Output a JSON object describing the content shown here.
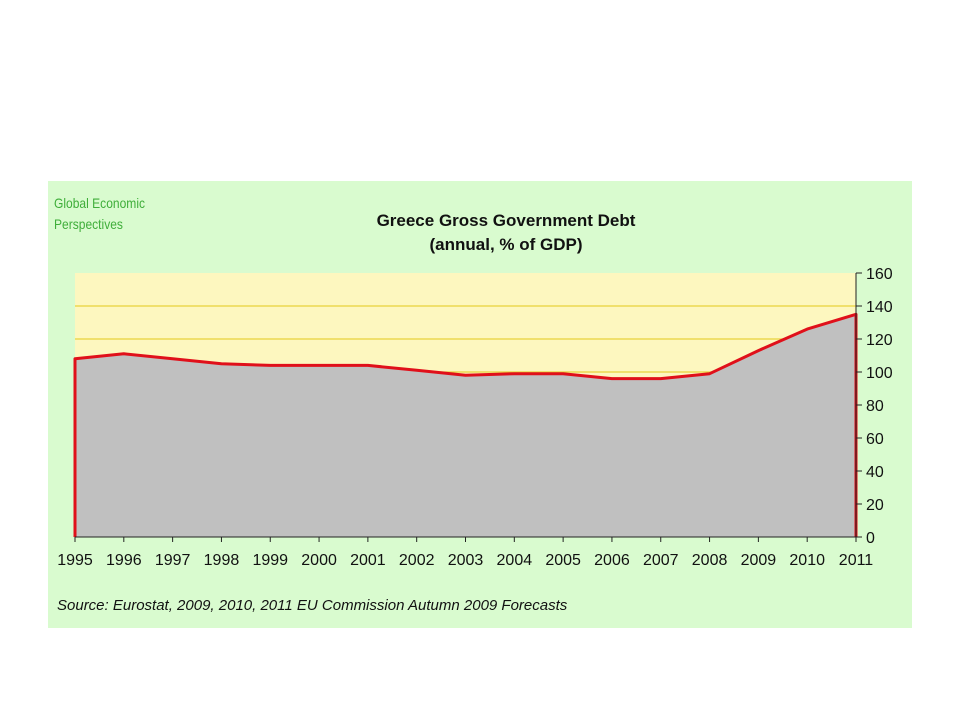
{
  "logo": {
    "line1": "Global Economic",
    "line2": "Perspectives"
  },
  "source": "Source: Eurostat, 2009, 2010, 2011 EU Commission Autumn 2009 Forecasts",
  "colors": {
    "panel": "#d9fbcf",
    "plot_bg": "#fdf7bf",
    "grid": "#e8d23a",
    "area": "#c0c0c0",
    "line": "#e0101a"
  },
  "chart_data": {
    "type": "area",
    "title": "Greece Gross Government Debt",
    "subtitle": "(annual, % of GDP)",
    "xlabel": "",
    "ylabel": "",
    "x": [
      "1995",
      "1996",
      "1997",
      "1998",
      "1999",
      "2000",
      "2001",
      "2002",
      "2003",
      "2004",
      "2005",
      "2006",
      "2007",
      "2008",
      "2009",
      "2010",
      "2011"
    ],
    "values": [
      108,
      111,
      108,
      105,
      104,
      104,
      104,
      101,
      98,
      99,
      99,
      96,
      96,
      99,
      113,
      126,
      135
    ],
    "ylim": [
      0,
      160
    ],
    "yticks": [
      "0",
      "20",
      "40",
      "60",
      "80",
      "100",
      "120",
      "140",
      "160"
    ],
    "y_axis_side": "right",
    "grid": true
  }
}
